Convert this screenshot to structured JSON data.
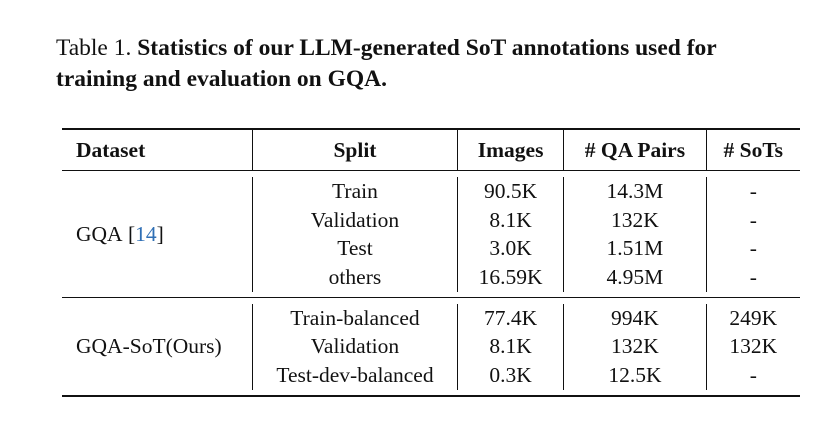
{
  "caption": {
    "prefix": "Table 1.",
    "text": "Statistics of our LLM-generated SoT annotations used for training and evaluation on GQA."
  },
  "table": {
    "headers": [
      "Dataset",
      "Split",
      "Images",
      "# QA Pairs",
      "# SoTs"
    ],
    "groups": [
      {
        "dataset": "GQA",
        "citation": "14",
        "rows": [
          {
            "split": "Train",
            "images": "90.5K",
            "qa_pairs": "14.3M",
            "sots": "-"
          },
          {
            "split": "Validation",
            "images": "8.1K",
            "qa_pairs": "132K",
            "sots": "-"
          },
          {
            "split": "Test",
            "images": "3.0K",
            "qa_pairs": "1.51M",
            "sots": "-"
          },
          {
            "split": "others",
            "images": "16.59K",
            "qa_pairs": "4.95M",
            "sots": "-"
          }
        ]
      },
      {
        "dataset": "GQA-SoT(Ours)",
        "citation": "",
        "rows": [
          {
            "split": "Train-balanced",
            "images": "77.4K",
            "qa_pairs": "994K",
            "sots": "249K"
          },
          {
            "split": "Validation",
            "images": "8.1K",
            "qa_pairs": "132K",
            "sots": "132K"
          },
          {
            "split": "Test-dev-balanced",
            "images": "0.3K",
            "qa_pairs": "12.5K",
            "sots": "-"
          }
        ]
      }
    ]
  }
}
